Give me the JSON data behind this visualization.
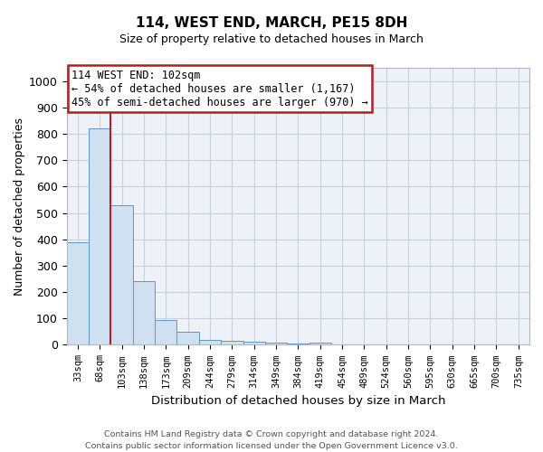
{
  "title1": "114, WEST END, MARCH, PE15 8DH",
  "title2": "Size of property relative to detached houses in March",
  "xlabel": "Distribution of detached houses by size in March",
  "ylabel": "Number of detached properties",
  "bar_color": "#cfe0f0",
  "bar_edge_color": "#6096c8",
  "bar_categories": [
    "33sqm",
    "68sqm",
    "103sqm",
    "138sqm",
    "173sqm",
    "209sqm",
    "244sqm",
    "279sqm",
    "314sqm",
    "349sqm",
    "384sqm",
    "419sqm",
    "454sqm",
    "489sqm",
    "524sqm",
    "560sqm",
    "595sqm",
    "630sqm",
    "665sqm",
    "700sqm",
    "735sqm"
  ],
  "bar_values": [
    390,
    820,
    530,
    243,
    95,
    50,
    20,
    15,
    13,
    8,
    6,
    8,
    0,
    0,
    0,
    0,
    0,
    0,
    0,
    0,
    0
  ],
  "vline_x_index": 1.5,
  "vline_color": "#aa2222",
  "annotation_line1": "114 WEST END: 102sqm",
  "annotation_line2": "← 54% of detached houses are smaller (1,167)",
  "annotation_line3": "45% of semi-detached houses are larger (970) →",
  "annotation_box_color": "#aa2222",
  "ylim": [
    0,
    1050
  ],
  "yticks": [
    0,
    100,
    200,
    300,
    400,
    500,
    600,
    700,
    800,
    900,
    1000
  ],
  "footnote1": "Contains HM Land Registry data © Crown copyright and database right 2024.",
  "footnote2": "Contains public sector information licensed under the Open Government Licence v3.0.",
  "plot_bg_color": "#eef2f8",
  "grid_color": "#c8d0dc",
  "fig_bg_color": "#ffffff"
}
